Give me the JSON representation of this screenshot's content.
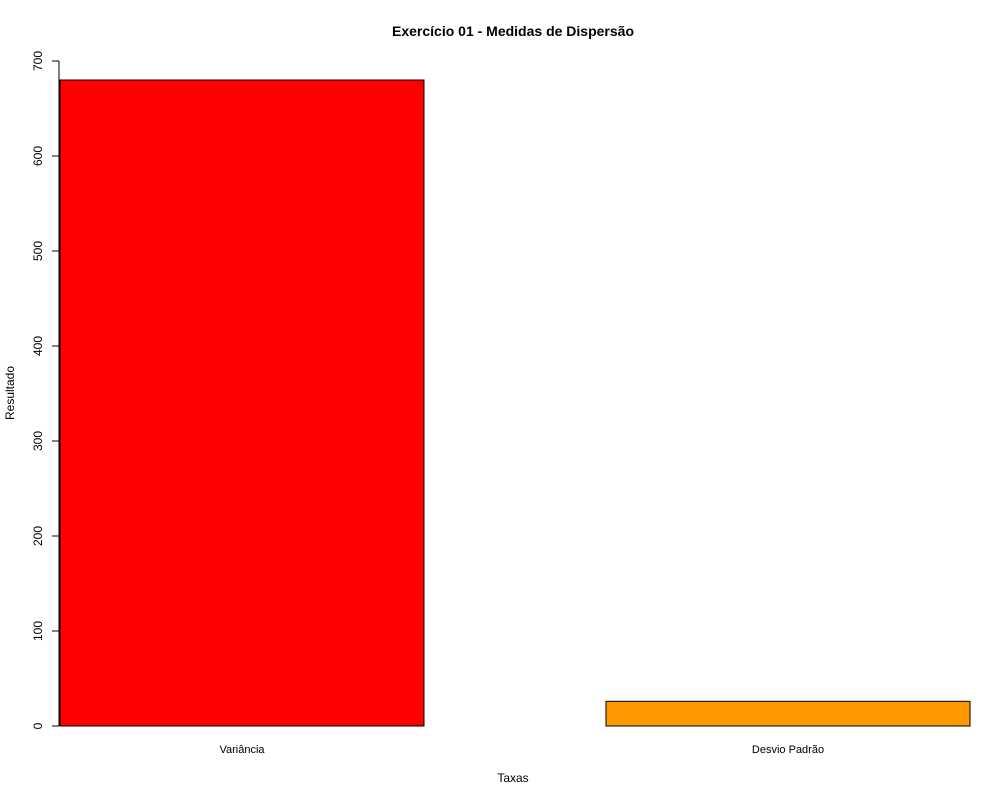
{
  "chart_data": {
    "type": "bar",
    "title": "Exercício 01 - Medidas de Dispersão",
    "xlabel": "Taxas",
    "ylabel": "Resultado",
    "categories": [
      "Variância",
      "Desvio Padrão"
    ],
    "values": [
      680,
      26
    ],
    "colors": [
      "#ff0000",
      "#ff9900"
    ],
    "ylim": [
      0,
      700
    ],
    "yticks": [
      0,
      100,
      200,
      300,
      400,
      500,
      600,
      700
    ],
    "grid": false,
    "legend": "none"
  }
}
